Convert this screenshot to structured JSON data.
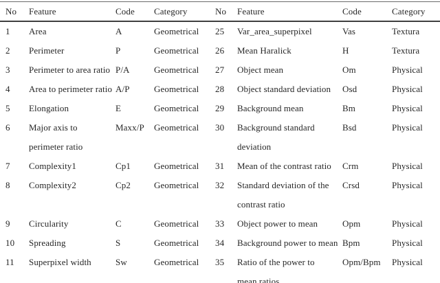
{
  "table": {
    "column_headers": [
      "No",
      "Feature",
      "Code",
      "Category",
      "No",
      "Feature",
      "Code",
      "Category"
    ],
    "rows": [
      [
        "1",
        "Area",
        "A",
        "Geometrical",
        "25",
        "Var_area_superpixel",
        "Vas",
        "Textura"
      ],
      [
        "2",
        "Perimeter",
        "P",
        "Geometrical",
        "26",
        "Mean Haralick",
        "H",
        "Textura"
      ],
      [
        "3",
        "Perimeter to area ratio",
        "P/A",
        "Geometrical",
        "27",
        "Object mean",
        "Om",
        "Physical"
      ],
      [
        "4",
        "Area to perimeter ratio",
        "A/P",
        "Geometrical",
        "28",
        "Object standard deviation",
        "Osd",
        "Physical"
      ],
      [
        "5",
        "Elongation",
        "E",
        "Geometrical",
        "29",
        "Background mean",
        "Bm",
        "Physical"
      ],
      [
        "6",
        "Major axis to\nperimeter ratio",
        "Maxx/P",
        "Geometrical",
        "30",
        "Background standard\ndeviation",
        "Bsd",
        "Physical"
      ],
      [
        "7",
        "Complexity1",
        "Cp1",
        "Geometrical",
        "31",
        "Mean of the contrast ratio",
        "Crm",
        "Physical"
      ],
      [
        "8",
        "Complexity2",
        "Cp2",
        "Geometrical",
        "32",
        "Standard deviation of the\ncontrast ratio",
        "Crsd",
        "Physical"
      ],
      [
        "9",
        "Circularity",
        "C",
        "Geometrical",
        "33",
        "Object power to mean",
        "Opm",
        "Physical"
      ],
      [
        "10",
        "Spreading",
        "S",
        "Geometrical",
        "34",
        "Background power to mean",
        "Bpm",
        "Physical"
      ],
      [
        "11",
        "Superpixel width",
        "Sw",
        "Geometrical",
        "35",
        "Ratio of the power to\nmean ratios",
        "Opm/Bpm",
        "Physical"
      ]
    ],
    "colors": {
      "background": "#ffffff",
      "text": "#262626",
      "rule_top": "#6a6a6a",
      "rule_header": "#3f3f3f"
    }
  }
}
